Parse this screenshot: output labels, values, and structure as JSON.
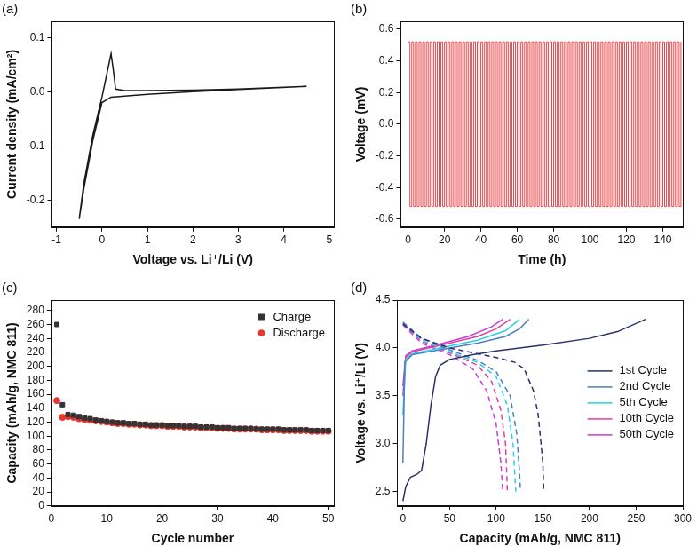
{
  "chart_data": [
    {
      "title": "(a)",
      "type": "line",
      "x_label": "Voltage vs. Li⁺/Li (V)",
      "y_label": "Current density (mA/cm²)",
      "xlim": [
        -1.1,
        5.1
      ],
      "xticks": [
        -1,
        0,
        1,
        2,
        3,
        4,
        5
      ],
      "ylim": [
        -0.25,
        0.13
      ],
      "yticks": [
        -0.2,
        -0.1,
        {
          "value": 0,
          "label": "0.0"
        },
        0.1
      ],
      "grid": false,
      "series": [
        {
          "color": "#1a1a1a",
          "marker": "none",
          "line_style": "solid",
          "x": [
            4.5,
            3,
            2,
            1,
            0.5,
            0.2,
            0,
            -0.2,
            -0.4,
            -0.5,
            -0.4,
            -0.2,
            0,
            0.1,
            0.2,
            0.25,
            0.3,
            0.5,
            1,
            2,
            3,
            4.5
          ],
          "values": [
            0.01,
            0.004,
            0.0,
            -0.005,
            -0.008,
            -0.01,
            -0.02,
            -0.09,
            -0.18,
            -0.235,
            -0.17,
            -0.08,
            -0.01,
            0.03,
            0.07,
            0.04,
            0.005,
            0.002,
            0.002,
            0.003,
            0.005,
            0.01
          ]
        }
      ]
    },
    {
      "title": "(b)",
      "type": "line",
      "x_label": "Time (h)",
      "y_label": "Voltage (mV)",
      "xlim": [
        -4,
        151
      ],
      "xticks": [
        0,
        20,
        40,
        60,
        80,
        100,
        120,
        140
      ],
      "ylim": [
        -0.65,
        0.65
      ],
      "yticks": [
        -0.6,
        -0.4,
        -0.2,
        {
          "value": 0,
          "label": "0.0"
        },
        0.2,
        0.4,
        0.6
      ],
      "grid": false,
      "series": [
        {
          "color": "#e8474a",
          "marker": "none",
          "line_style": "stepped",
          "x": [
            0,
            1,
            2,
            3,
            4,
            5,
            6,
            7,
            8,
            9,
            10,
            11,
            12,
            13,
            14,
            15,
            16,
            17,
            18,
            19,
            20,
            21,
            22,
            23,
            24,
            25,
            26,
            27,
            28,
            29,
            30,
            31,
            32,
            33,
            34,
            35,
            36,
            37,
            38,
            39,
            40,
            41,
            42,
            43,
            44,
            45,
            46,
            47,
            48,
            49,
            50,
            51,
            52,
            53,
            54,
            55,
            56,
            57,
            58,
            59,
            60,
            61,
            62,
            63,
            64,
            65,
            66,
            67,
            68,
            69,
            70,
            71,
            72,
            73,
            74,
            75,
            76,
            77,
            78,
            79,
            80,
            81,
            82,
            83,
            84,
            85,
            86,
            87,
            88,
            89,
            90,
            91,
            92,
            93,
            94,
            95,
            96,
            97,
            98,
            99,
            100,
            101,
            102,
            103,
            104,
            105,
            106,
            107,
            108,
            109,
            110,
            111,
            112,
            113,
            114,
            115,
            116,
            117,
            118,
            119,
            120,
            121,
            122,
            123,
            124,
            125,
            126,
            127,
            128,
            129,
            130,
            131,
            132,
            133,
            134,
            135,
            136,
            137,
            138,
            139,
            140,
            141,
            142,
            143,
            144,
            145,
            146,
            147,
            148,
            149,
            150
          ],
          "values": [
            0.52,
            -0.52,
            0.52,
            -0.52,
            0.52,
            -0.52,
            0.52,
            -0.52,
            0.52,
            -0.52,
            0.52,
            -0.52,
            0.52,
            -0.52,
            0.52,
            -0.52,
            0.52,
            -0.52,
            0.52,
            -0.52,
            0.52,
            -0.52,
            0.52,
            -0.52,
            0.52,
            -0.52,
            0.52,
            -0.52,
            0.52,
            -0.52,
            0.52,
            -0.52,
            0.52,
            -0.52,
            0.52,
            -0.52,
            0.52,
            -0.52,
            0.52,
            -0.52,
            0.52,
            -0.52,
            0.52,
            -0.52,
            0.52,
            -0.52,
            0.52,
            -0.52,
            0.52,
            -0.52,
            0.52,
            -0.52,
            0.52,
            -0.52,
            0.52,
            -0.52,
            0.52,
            -0.52,
            0.52,
            -0.52,
            0.52,
            -0.52,
            0.52,
            -0.52,
            0.52,
            -0.52,
            0.52,
            -0.52,
            0.52,
            -0.52,
            0.52,
            -0.52,
            0.52,
            -0.52,
            0.52,
            -0.52,
            0.52,
            -0.52,
            0.52,
            -0.52,
            0.52,
            -0.52,
            0.52,
            -0.52,
            0.52,
            -0.52,
            0.52,
            -0.52,
            0.52,
            -0.52,
            0.52,
            -0.52,
            0.52,
            -0.52,
            0.52,
            -0.52,
            0.52,
            -0.52,
            0.52,
            -0.52,
            0.52,
            -0.52,
            0.52,
            -0.52,
            0.52,
            -0.52,
            0.52,
            -0.52,
            0.52,
            -0.52,
            0.52,
            -0.52,
            0.52,
            -0.52,
            0.52,
            -0.52,
            0.52,
            -0.52,
            0.52,
            -0.52,
            0.52,
            -0.52,
            0.52,
            -0.52,
            0.52,
            -0.52,
            0.52,
            -0.52,
            0.52,
            -0.52,
            0.52,
            -0.52,
            0.52,
            -0.52,
            0.52,
            -0.52,
            0.52,
            -0.52,
            0.52,
            -0.52,
            0.52,
            -0.52,
            0.52,
            -0.52,
            0.52,
            -0.52,
            0.52,
            -0.52,
            0.52,
            -0.52,
            0.52
          ]
        }
      ]
    },
    {
      "title": "(c)",
      "type": "scatter",
      "x_label": "Cycle number",
      "y_label": "Capacity (mAh/g, NMC 811)",
      "xlim": [
        0,
        51
      ],
      "xticks": [
        0,
        10,
        20,
        30,
        40,
        50
      ],
      "ylim": [
        0,
        295
      ],
      "yticks": [
        0,
        20,
        40,
        60,
        80,
        100,
        120,
        140,
        160,
        180,
        200,
        220,
        240,
        260,
        280
      ],
      "grid": false,
      "legend": "upper right",
      "x": [
        1,
        2,
        3,
        4,
        5,
        6,
        7,
        8,
        9,
        10,
        11,
        12,
        13,
        14,
        15,
        16,
        17,
        18,
        19,
        20,
        21,
        22,
        23,
        24,
        25,
        26,
        27,
        28,
        29,
        30,
        31,
        32,
        33,
        34,
        35,
        36,
        37,
        38,
        39,
        40,
        41,
        42,
        43,
        44,
        45,
        46,
        47,
        48,
        49,
        50
      ],
      "series": [
        {
          "name": "Charge",
          "color": "#333333",
          "marker": "square",
          "values": [
            260,
            145,
            131,
            130,
            128,
            126,
            125,
            123,
            122,
            121,
            120,
            119,
            119,
            118,
            118,
            117,
            117,
            116,
            116,
            116,
            115,
            115,
            115,
            114,
            114,
            114,
            113,
            113,
            113,
            112,
            112,
            112,
            111,
            111,
            111,
            111,
            110,
            110,
            110,
            110,
            110,
            109,
            109,
            109,
            109,
            109,
            108,
            108,
            108,
            108
          ]
        },
        {
          "name": "Discharge",
          "color": "#e8352e",
          "marker": "circle",
          "values": [
            151,
            127,
            128,
            127,
            125,
            124,
            123,
            122,
            121,
            120,
            119,
            118,
            118,
            117,
            117,
            116,
            116,
            115,
            115,
            115,
            114,
            114,
            114,
            113,
            113,
            113,
            112,
            112,
            112,
            111,
            111,
            111,
            110,
            110,
            110,
            110,
            110,
            109,
            109,
            109,
            109,
            108,
            108,
            108,
            108,
            108,
            107,
            107,
            107,
            107
          ]
        }
      ]
    },
    {
      "title": "(d)",
      "type": "line",
      "x_label": "Capacity (mAh/g, NMC 811)",
      "y_label": "Voltage vs. Li⁺/Li (V)",
      "xlim": [
        -6,
        300
      ],
      "xticks": [
        0,
        50,
        100,
        150,
        200,
        250,
        300
      ],
      "ylim": [
        2.35,
        4.5
      ],
      "yticks": [
        2.5,
        {
          "value": 3,
          "label": "3.0"
        },
        3.5,
        {
          "value": 4,
          "label": "4.0"
        },
        4.5
      ],
      "grid": false,
      "legend": "center right",
      "series": [
        {
          "name": "1st Cycle",
          "color": "#2b2f6b",
          "marker": "none",
          "curves": [
            {
              "line_style": "solid",
              "x": [
                0,
                3,
                8,
                15,
                20,
                25,
                30,
                35,
                40,
                50,
                75,
                100,
                150,
                200,
                230,
                260
              ],
              "values": [
                2.4,
                2.55,
                2.65,
                2.68,
                2.72,
                3.0,
                3.4,
                3.7,
                3.82,
                3.88,
                3.93,
                3.97,
                4.03,
                4.1,
                4.17,
                4.3
              ]
            },
            {
              "line_style": "dashed",
              "x": [
                0,
                20,
                50,
                100,
                120,
                130,
                140,
                145,
                148,
                150,
                151
              ],
              "values": [
                4.25,
                4.1,
                4.0,
                3.9,
                3.85,
                3.78,
                3.55,
                3.3,
                3.0,
                2.8,
                2.5
              ]
            }
          ]
        },
        {
          "name": "2nd Cycle",
          "color": "#4a7fc0",
          "marker": "none",
          "curves": [
            {
              "line_style": "solid",
              "x": [
                0,
                2,
                10,
                50,
                80,
                110,
                125,
                135
              ],
              "values": [
                2.8,
                3.85,
                3.93,
                4.0,
                4.05,
                4.12,
                4.2,
                4.3
              ]
            },
            {
              "line_style": "dashed",
              "x": [
                0,
                20,
                50,
                80,
                100,
                115,
                122,
                125,
                126
              ],
              "values": [
                4.27,
                4.1,
                3.98,
                3.87,
                3.75,
                3.5,
                3.1,
                2.7,
                2.5
              ]
            }
          ]
        },
        {
          "name": "5th Cycle",
          "color": "#2ad0e8",
          "marker": "none",
          "curves": [
            {
              "line_style": "solid",
              "x": [
                0,
                3,
                10,
                50,
                80,
                110,
                125
              ],
              "values": [
                3.3,
                3.88,
                3.94,
                4.02,
                4.08,
                4.18,
                4.3
              ]
            },
            {
              "line_style": "dashed",
              "x": [
                0,
                20,
                50,
                80,
                100,
                112,
                118,
                121
              ],
              "values": [
                4.26,
                4.08,
                3.96,
                3.85,
                3.7,
                3.4,
                3.0,
                2.5
              ]
            }
          ]
        },
        {
          "name": "10th Cycle",
          "color": "#e040a0",
          "marker": "none",
          "curves": [
            {
              "line_style": "solid",
              "x": [
                0,
                3,
                10,
                50,
                80,
                100,
                115
              ],
              "values": [
                3.5,
                3.9,
                3.96,
                4.05,
                4.12,
                4.2,
                4.3
              ]
            },
            {
              "line_style": "dashed",
              "x": [
                0,
                20,
                50,
                80,
                95,
                105,
                110,
                112
              ],
              "values": [
                4.25,
                4.07,
                3.95,
                3.82,
                3.65,
                3.35,
                3.0,
                2.5
              ]
            }
          ]
        },
        {
          "name": "50th Cycle",
          "color": "#c33fd6",
          "marker": "none",
          "curves": [
            {
              "line_style": "solid",
              "x": [
                0,
                3,
                10,
                40,
                70,
                95,
                107
              ],
              "values": [
                3.6,
                3.92,
                3.97,
                4.04,
                4.12,
                4.22,
                4.3
              ]
            },
            {
              "line_style": "dashed",
              "x": [
                0,
                20,
                50,
                75,
                90,
                100,
                105,
                107
              ],
              "values": [
                4.24,
                4.05,
                3.93,
                3.78,
                3.55,
                3.2,
                2.8,
                2.5
              ]
            }
          ]
        }
      ]
    }
  ]
}
